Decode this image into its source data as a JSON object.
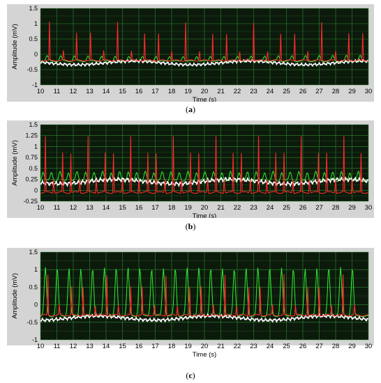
{
  "colors": {
    "panel_bg": "#d4d4d4",
    "plot_bg": "#0c1a0c",
    "grid": "#2f8a2f",
    "red_trace": "#ff2a2a",
    "green_trace": "#33ee33",
    "white_trace": "#ffffff"
  },
  "chart_data": [
    {
      "type": "line",
      "caption": "a",
      "xlabel": "Time (s)",
      "ylabel": "Amplitude (mV)",
      "xlim": [
        10,
        30
      ],
      "ylim": [
        -1,
        1.5
      ],
      "x_ticks": [
        "10",
        "11",
        "12",
        "13",
        "14",
        "15",
        "16",
        "17",
        "18",
        "19",
        "20",
        "21",
        "22",
        "23",
        "24",
        "25",
        "26",
        "27",
        "28",
        "29",
        "30"
      ],
      "y_ticks": [
        "-1",
        "-0.5",
        "0",
        "0.5",
        "1",
        "1.5"
      ],
      "grid": true,
      "red_beats": {
        "count": 24,
        "period": 0.83,
        "start": 10.55,
        "peak": 1.05,
        "base": -0.2
      },
      "green_beats": {
        "count": 24,
        "period": 0.83,
        "start": 10.4,
        "peak": -0.05,
        "base": -0.22
      },
      "white_baseline": {
        "mean": -0.28,
        "wander": 0.06
      }
    },
    {
      "type": "line",
      "caption": "b",
      "xlabel": "Time (s)",
      "ylabel": "Amplitude (mV)",
      "xlim": [
        10,
        30
      ],
      "ylim": [
        -0.25,
        1.5
      ],
      "x_ticks": [
        "10",
        "11",
        "12",
        "13",
        "14",
        "15",
        "16",
        "17",
        "18",
        "19",
        "20",
        "21",
        "22",
        "23",
        "24",
        "25",
        "26",
        "27",
        "28",
        "29",
        "30"
      ],
      "y_ticks": [
        "-0.25",
        "0",
        "0.25",
        "0.5",
        "0.75",
        "1",
        "1.25",
        "1.5"
      ],
      "grid": true,
      "red_beats": {
        "count": 38,
        "period": 0.52,
        "start": 10.3,
        "peak": 1.22,
        "base": -0.05
      },
      "green_beats": {
        "count": 38,
        "period": 0.52,
        "start": 10.15,
        "peak": 0.42,
        "base": 0.22
      },
      "white_baseline": {
        "mean": 0.2,
        "wander": 0.05
      }
    },
    {
      "type": "line",
      "caption": "c",
      "xlabel": "Time (s)",
      "ylabel": "Amplitude (mV)",
      "xlim": [
        10,
        30
      ],
      "ylim": [
        -1,
        1.5
      ],
      "x_ticks": [
        "10",
        "11",
        "12",
        "13",
        "14",
        "15",
        "16",
        "17",
        "18",
        "19",
        "20",
        "21",
        "22",
        "23",
        "24",
        "25",
        "26",
        "27",
        "28",
        "29",
        "30"
      ],
      "y_ticks": [
        "-1",
        "-0.5",
        "0",
        "0.5",
        "1",
        "1.5"
      ],
      "grid": true,
      "red_beats": {
        "count": 27,
        "period": 0.72,
        "start": 10.45,
        "peak": 0.85,
        "base": -0.3
      },
      "green_beats": {
        "count": 27,
        "period": 0.72,
        "start": 10.3,
        "peak": 1.05,
        "base": -0.32
      },
      "white_baseline": {
        "mean": -0.38,
        "wander": 0.06
      }
    }
  ]
}
